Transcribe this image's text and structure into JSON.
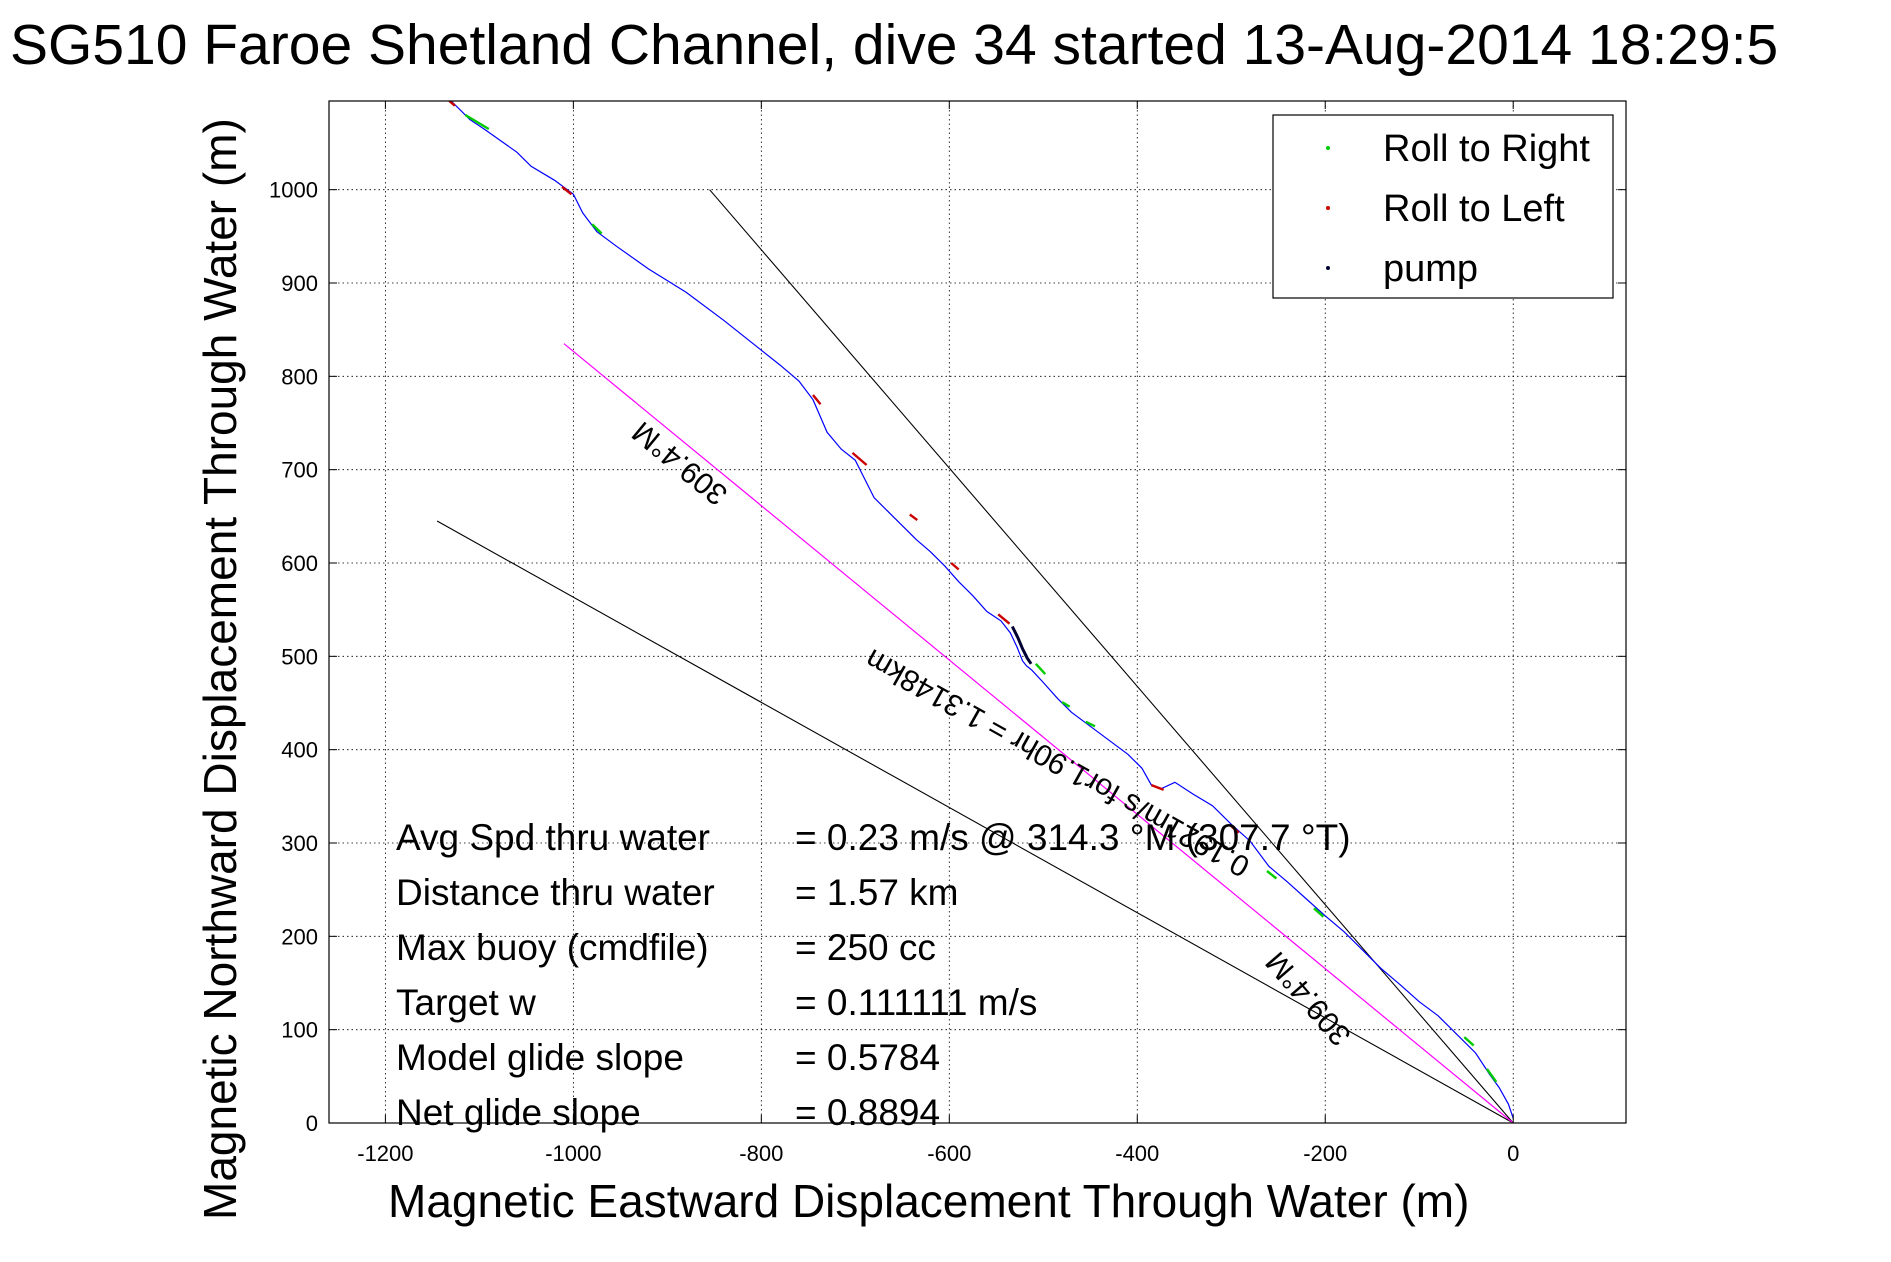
{
  "chart_data": {
    "type": "line",
    "title": "SG510 Faroe Shetland Channel, dive 34 started 13-Aug-2014 18:29:5",
    "xlabel": "Magnetic Eastward Displacement Through Water (m)",
    "ylabel": "Magnetic Northward Displacement Through Water (m)",
    "xlim": [
      -1260,
      120
    ],
    "ylim": [
      0,
      1095
    ],
    "xticks": [
      -1200,
      -1000,
      -800,
      -600,
      -400,
      -200,
      0
    ],
    "yticks": [
      0,
      100,
      200,
      300,
      400,
      500,
      600,
      700,
      800,
      900,
      1000
    ],
    "grid": true,
    "legend": {
      "placement": "top-right",
      "entries": [
        {
          "label": "Roll to Right",
          "color": "#00cc00"
        },
        {
          "label": "Roll to Left",
          "color": "#cc0000"
        },
        {
          "label": "pump",
          "color": "#000033"
        }
      ]
    },
    "colors": {
      "track": "#0000ff",
      "heading_line": "#ff00ff",
      "reference": "#000000"
    },
    "track": {
      "x": [
        -1130,
        -1110,
        -1095,
        -1060,
        -1045,
        -1020,
        -1000,
        -990,
        -975,
        -955,
        -920,
        -880,
        -840,
        -800,
        -780,
        -760,
        -745,
        -730,
        -715,
        -700,
        -690,
        -680,
        -665,
        -650,
        -635,
        -620,
        -605,
        -590,
        -575,
        -560,
        -545,
        -535,
        -528,
        -522,
        -518,
        -512,
        -500,
        -485,
        -470,
        -450,
        -430,
        -410,
        -395,
        -385,
        -375,
        -360,
        -340,
        -320,
        -300,
        -280,
        -260,
        -240,
        -220,
        -200,
        -180,
        -160,
        -140,
        -120,
        -100,
        -80,
        -60,
        -40,
        -25,
        -15,
        -5,
        0
      ],
      "y": [
        1095,
        1075,
        1065,
        1040,
        1025,
        1010,
        995,
        975,
        955,
        940,
        915,
        890,
        860,
        828,
        812,
        795,
        775,
        740,
        722,
        710,
        690,
        670,
        655,
        640,
        625,
        612,
        597,
        580,
        565,
        548,
        538,
        525,
        510,
        495,
        490,
        485,
        472,
        455,
        440,
        425,
        410,
        395,
        380,
        362,
        358,
        365,
        352,
        340,
        320,
        302,
        275,
        258,
        240,
        222,
        205,
        185,
        165,
        148,
        130,
        115,
        95,
        75,
        52,
        38,
        20,
        5
      ]
    },
    "roll_right_segments": [
      {
        "x": [
          -1115,
          -1090
        ],
        "y": [
          1080,
          1065
        ]
      },
      {
        "x": [
          -980,
          -970
        ],
        "y": [
          963,
          953
        ]
      },
      {
        "x": [
          -508,
          -498
        ],
        "y": [
          492,
          481
        ]
      },
      {
        "x": [
          -480,
          -472
        ],
        "y": [
          451,
          446
        ]
      },
      {
        "x": [
          -455,
          -445
        ],
        "y": [
          430,
          425
        ]
      },
      {
        "x": [
          -262,
          -252
        ],
        "y": [
          270,
          262
        ]
      },
      {
        "x": [
          -212,
          -202
        ],
        "y": [
          230,
          221
        ]
      },
      {
        "x": [
          -52,
          -42
        ],
        "y": [
          92,
          83
        ]
      },
      {
        "x": [
          -28,
          -18
        ],
        "y": [
          58,
          44
        ]
      }
    ],
    "roll_left_segments": [
      {
        "x": [
          -1132,
          -1126
        ],
        "y": [
          1095,
          1090
        ]
      },
      {
        "x": [
          -1012,
          -1002
        ],
        "y": [
          1003,
          995
        ]
      },
      {
        "x": [
          -745,
          -737
        ],
        "y": [
          780,
          770
        ]
      },
      {
        "x": [
          -703,
          -688
        ],
        "y": [
          718,
          705
        ]
      },
      {
        "x": [
          -642,
          -634
        ],
        "y": [
          652,
          646
        ]
      },
      {
        "x": [
          -598,
          -590
        ],
        "y": [
          600,
          593
        ]
      },
      {
        "x": [
          -548,
          -536
        ],
        "y": [
          545,
          535
        ]
      },
      {
        "x": [
          -385,
          -372
        ],
        "y": [
          362,
          357
        ]
      },
      {
        "x": [
          -300,
          -292
        ],
        "y": [
          318,
          311
        ]
      }
    ],
    "pump_segments": [
      {
        "x": [
          -533,
          -527,
          -522,
          -517,
          -513
        ],
        "y": [
          532,
          520,
          508,
          498,
          492
        ]
      }
    ],
    "reference_lines": [
      {
        "x": [
          -855,
          0
        ],
        "y": [
          1000,
          0
        ]
      },
      {
        "x": [
          -1145,
          0
        ],
        "y": [
          645,
          0
        ]
      }
    ],
    "heading_line": {
      "x": [
        -1010,
        0
      ],
      "y": [
        835,
        0
      ]
    },
    "annotations": [
      {
        "text": "309.4°M",
        "x": -880,
        "y": 715
      },
      {
        "text": "309.4°M",
        "x": -210,
        "y": 140
      },
      {
        "text": "0.1921m/s for1.90hr = 1.3148km",
        "x": -480,
        "y": 395
      }
    ],
    "stats": [
      {
        "label": "Avg Spd thru water",
        "value": "=  0.23 m/s @ 314.3 °M (307.7 °T)"
      },
      {
        "label": "Distance thru water",
        "value": "=  1.57 km"
      },
      {
        "label": "Max buoy (cmdfile)",
        "value": "= 250 cc"
      },
      {
        "label": "Target w",
        "value": "= 0.111111 m/s"
      },
      {
        "label": "Model glide slope",
        "value": "= 0.5784"
      },
      {
        "label": "Net glide slope",
        "value": "= 0.8894"
      }
    ]
  }
}
